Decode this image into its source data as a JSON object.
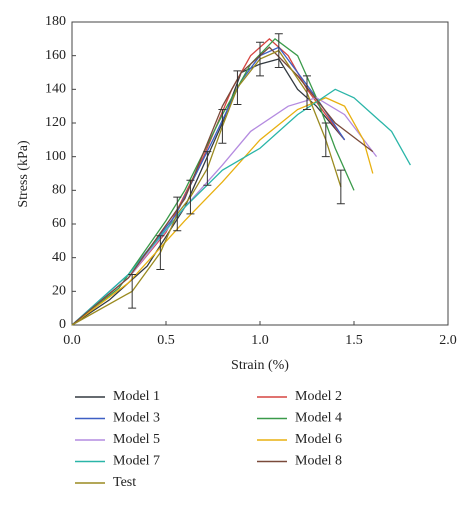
{
  "chart_data": {
    "type": "line",
    "xlabel": "Strain (%)",
    "ylabel": "Stress (kPa)",
    "xlim": [
      0,
      2
    ],
    "xticks": [
      {
        "value": 0,
        "label": "0.0"
      },
      0.5,
      {
        "value": 1,
        "label": "1.0"
      },
      1.5,
      {
        "value": 2,
        "label": "2.0"
      }
    ],
    "ylim": [
      0,
      180
    ],
    "yticks": [
      0,
      20,
      40,
      60,
      80,
      100,
      120,
      140,
      160,
      180
    ],
    "series": [
      {
        "name": "Model 1",
        "color": "#333a40",
        "x": [
          0,
          0.2,
          0.4,
          0.6,
          0.8,
          0.9,
          1.0,
          1.1,
          1.2,
          1.3,
          1.45
        ],
        "values": [
          0,
          15,
          35,
          70,
          120,
          150,
          155,
          158,
          140,
          130,
          110
        ]
      },
      {
        "name": "Model 2",
        "color": "#d64541",
        "x": [
          0,
          0.3,
          0.5,
          0.7,
          0.85,
          0.95,
          1.05,
          1.15,
          1.25,
          1.35,
          1.45
        ],
        "values": [
          0,
          28,
          55,
          100,
          140,
          160,
          170,
          160,
          140,
          125,
          110
        ]
      },
      {
        "name": "Model 3",
        "color": "#3d5fc4",
        "x": [
          0,
          0.3,
          0.55,
          0.75,
          0.9,
          1.0,
          1.1,
          1.2,
          1.3,
          1.45
        ],
        "values": [
          0,
          30,
          65,
          110,
          145,
          160,
          165,
          150,
          135,
          110
        ]
      },
      {
        "name": "Model 4",
        "color": "#3a9a4a",
        "x": [
          0,
          0.25,
          0.5,
          0.6,
          0.8,
          0.95,
          1.08,
          1.2,
          1.3,
          1.4,
          1.5
        ],
        "values": [
          0,
          22,
          62,
          80,
          125,
          155,
          170,
          160,
          135,
          105,
          80
        ]
      },
      {
        "name": "Model 5",
        "color": "#b48be0",
        "x": [
          0,
          0.3,
          0.6,
          0.8,
          0.95,
          1.15,
          1.3,
          1.45,
          1.62
        ],
        "values": [
          0,
          28,
          70,
          95,
          115,
          130,
          135,
          125,
          100
        ]
      },
      {
        "name": "Model 6",
        "color": "#e8b010",
        "x": [
          0,
          0.3,
          0.6,
          0.8,
          1.0,
          1.2,
          1.35,
          1.45,
          1.55,
          1.6
        ],
        "values": [
          0,
          25,
          62,
          85,
          110,
          128,
          135,
          130,
          110,
          90
        ]
      },
      {
        "name": "Model 7",
        "color": "#2ab5a8",
        "x": [
          0,
          0.3,
          0.6,
          0.8,
          1.0,
          1.2,
          1.4,
          1.5,
          1.6,
          1.7,
          1.8
        ],
        "values": [
          0,
          30,
          70,
          92,
          105,
          125,
          140,
          135,
          125,
          115,
          95
        ]
      },
      {
        "name": "Model 8",
        "color": "#7a4a3a",
        "x": [
          0,
          0.3,
          0.6,
          0.8,
          0.9,
          1.05,
          1.2,
          1.4,
          1.6
        ],
        "values": [
          0,
          28,
          75,
          130,
          150,
          165,
          148,
          120,
          103
        ]
      },
      {
        "name": "Test",
        "color": "#9a8a20",
        "x": [
          0,
          0.32,
          0.47,
          0.56,
          0.63,
          0.72,
          0.8,
          0.88,
          1.0,
          1.1,
          1.25,
          1.35,
          1.43
        ],
        "values": [
          0,
          20,
          43,
          66,
          76,
          93,
          118,
          141,
          158,
          163,
          138,
          110,
          82
        ],
        "errors": [
          null,
          10,
          10,
          10,
          10,
          10,
          10,
          10,
          10,
          10,
          10,
          10,
          10
        ]
      }
    ]
  }
}
